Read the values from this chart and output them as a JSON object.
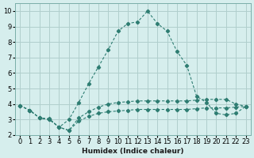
{
  "xlabel": "Humidex (Indice chaleur)",
  "background_color": "#d6eeed",
  "grid_color": "#b0cfcd",
  "line_color": "#2e7d72",
  "xlim": [
    -0.5,
    23.5
  ],
  "ylim": [
    2,
    10.5
  ],
  "xticks": [
    0,
    1,
    2,
    3,
    4,
    5,
    6,
    7,
    8,
    9,
    10,
    11,
    12,
    13,
    14,
    15,
    16,
    17,
    18,
    19,
    20,
    21,
    22,
    23
  ],
  "yticks": [
    2,
    3,
    4,
    5,
    6,
    7,
    8,
    9,
    10
  ],
  "series": [
    [
      3.9,
      3.6,
      3.1,
      3.0,
      2.5,
      2.3,
      2.9,
      3.2,
      3.4,
      3.5,
      3.55,
      3.6,
      3.65,
      3.65,
      3.65,
      3.65,
      3.65,
      3.65,
      3.7,
      3.75,
      3.75,
      3.75,
      3.8,
      3.85
    ],
    [
      3.9,
      3.6,
      3.1,
      3.0,
      2.5,
      2.3,
      3.1,
      3.5,
      3.8,
      4.0,
      4.1,
      4.15,
      4.2,
      4.2,
      4.2,
      4.2,
      4.2,
      4.2,
      4.25,
      4.3,
      4.3,
      4.3,
      4.0,
      3.85
    ],
    [
      3.9,
      3.6,
      3.1,
      3.05,
      2.5,
      3.0,
      4.1,
      5.3,
      6.4,
      7.5,
      8.7,
      9.2,
      9.3,
      10.0,
      9.2,
      8.7,
      7.4,
      6.5,
      4.5,
      4.1,
      3.4,
      3.3,
      3.4,
      3.85
    ]
  ]
}
